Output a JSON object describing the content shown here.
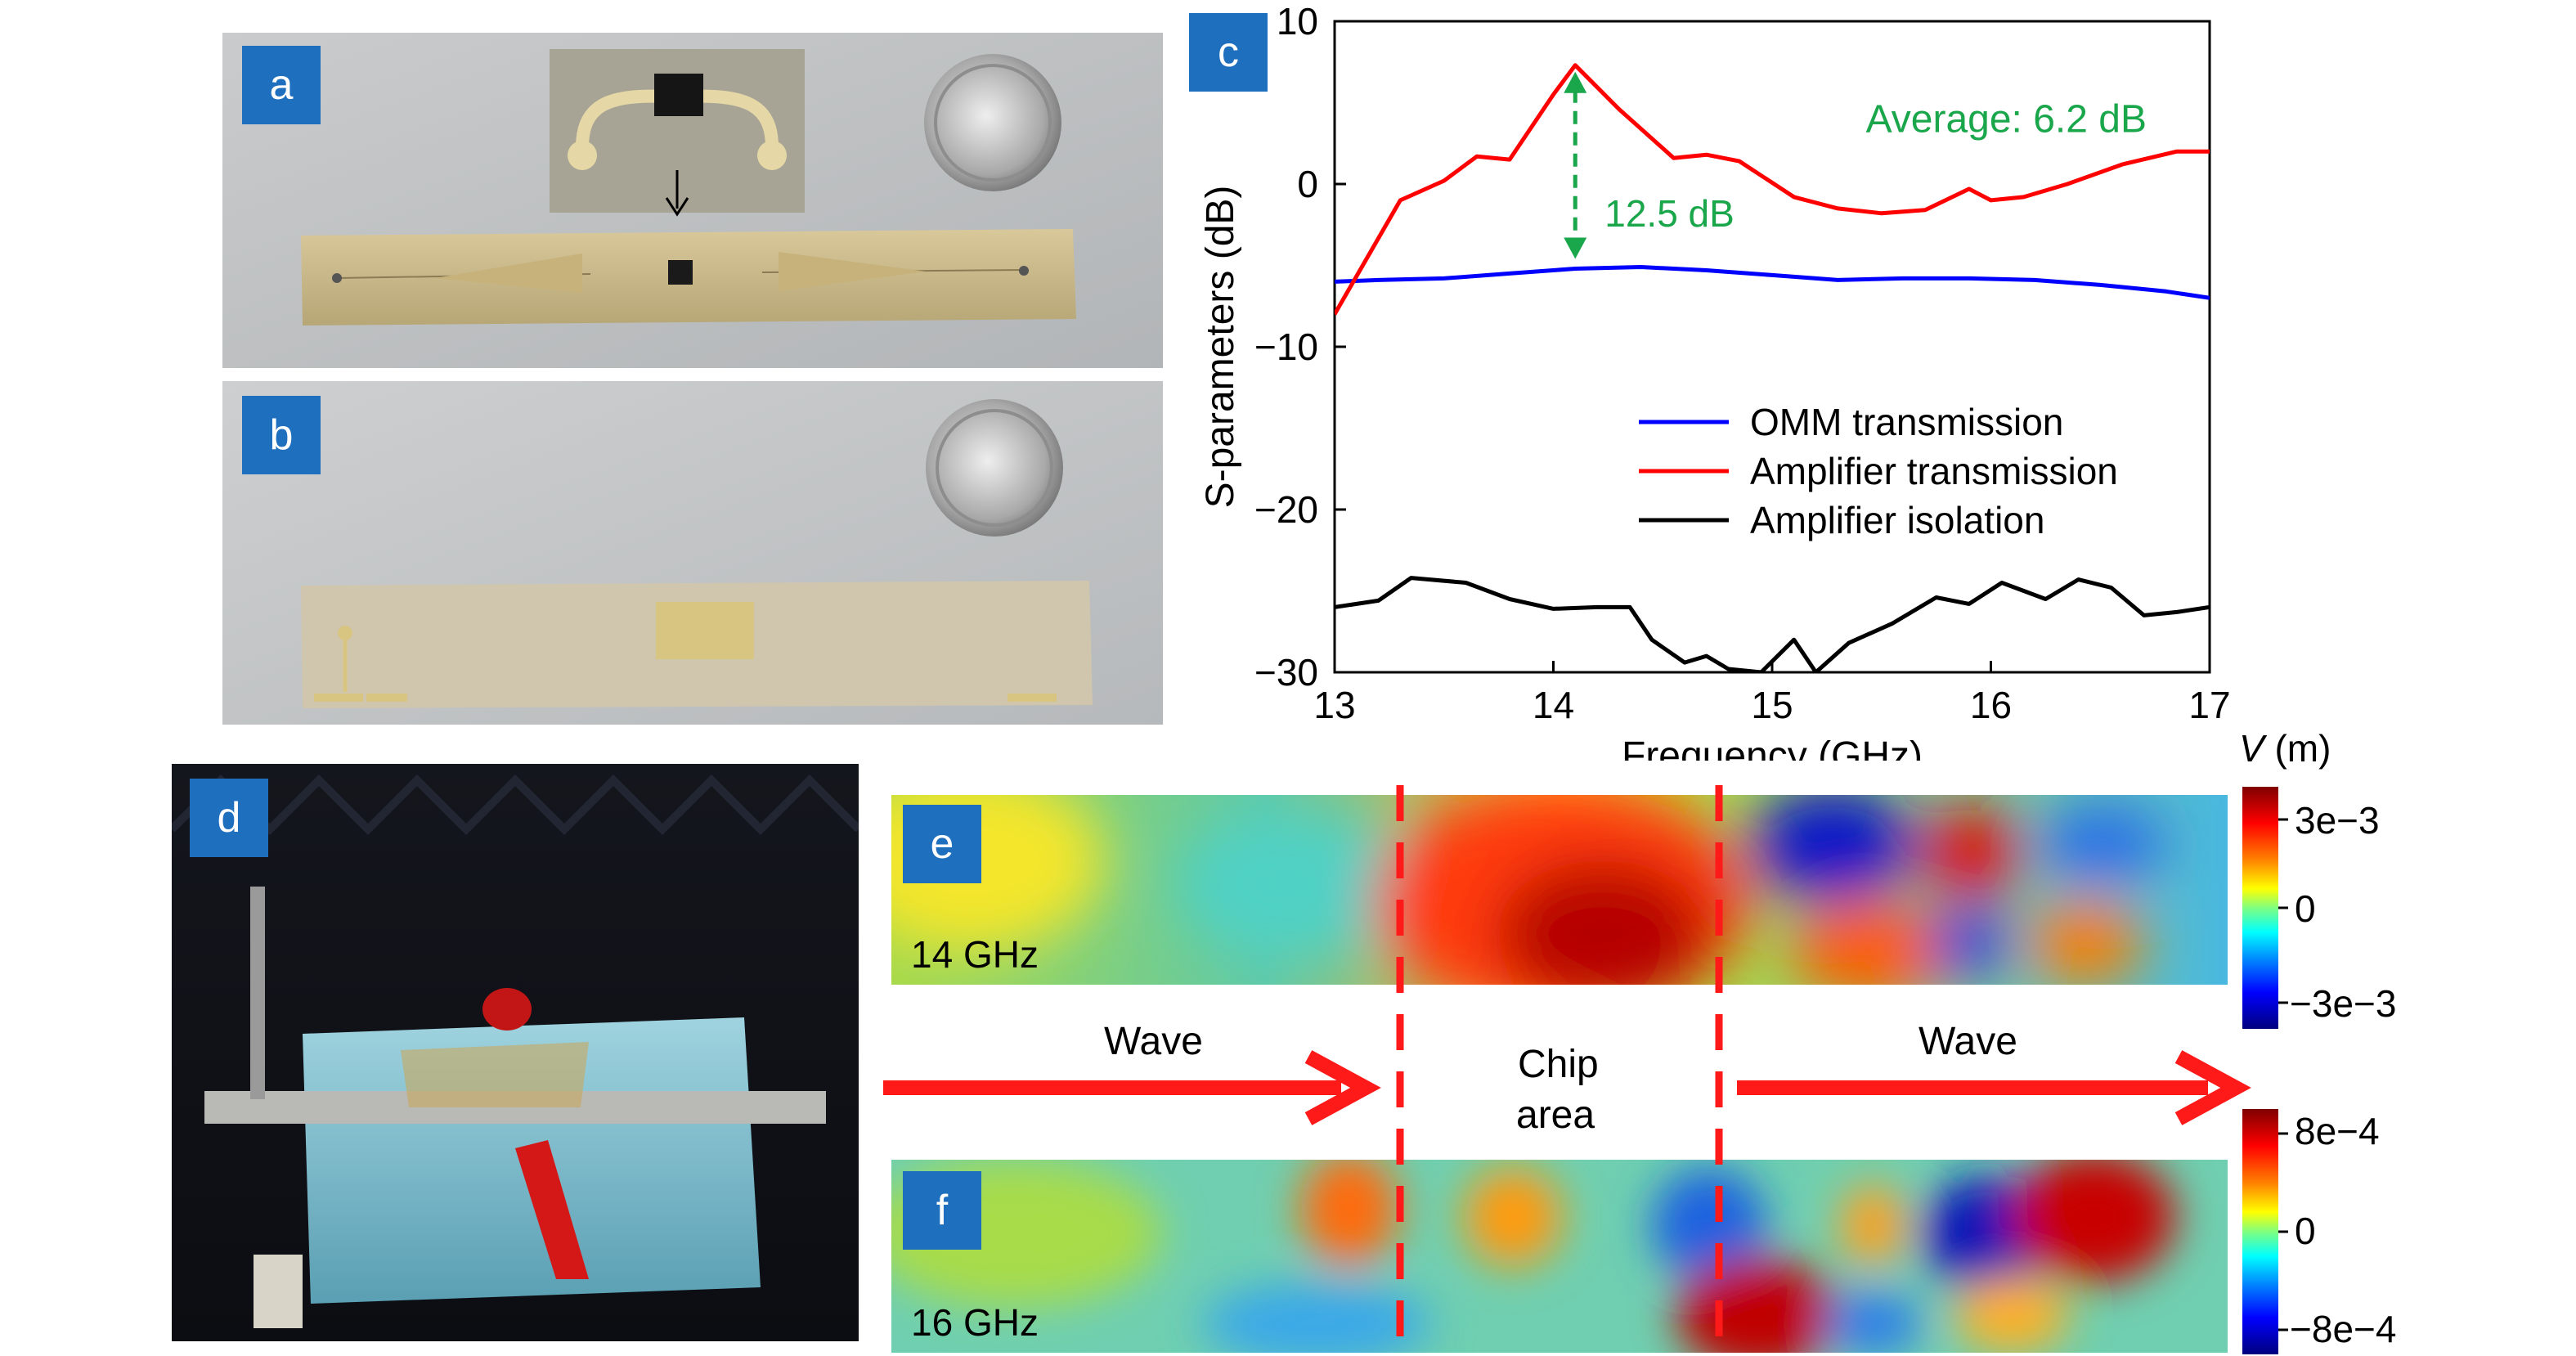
{
  "panels": {
    "a": {
      "label": "a"
    },
    "b": {
      "label": "b"
    },
    "c": {
      "label": "c"
    },
    "d": {
      "label": "d"
    },
    "e": {
      "label": "e",
      "freq": "14 GHz"
    },
    "f": {
      "label": "f",
      "freq": "16 GHz"
    }
  },
  "field_maps": {
    "colorbar_title_italic": "V",
    "colorbar_title_unit": " (m)",
    "colorbar_e_ticks": [
      "3e−3",
      "0",
      "−3e−3"
    ],
    "colorbar_f_ticks": [
      "8e−4",
      "0",
      "−8e−4"
    ],
    "wave_left": "Wave",
    "wave_right": "Wave",
    "chip_area_line1": "Chip",
    "chip_area_line2": "area"
  },
  "colors": {
    "panel_tag": "#1f6fbf",
    "omm": "#0000ff",
    "amplifier": "#ff0000",
    "isolation": "#000000",
    "annotation": "#1aa64b",
    "arrow": "#ff0000"
  },
  "chart_data": {
    "type": "line",
    "xlabel": "Frequency (GHz)",
    "ylabel": "S-parameters (dB)",
    "xlim": [
      13,
      17
    ],
    "ylim": [
      -30,
      10
    ],
    "xticks": [
      "13",
      "14",
      "15",
      "16",
      "17"
    ],
    "yticks": [
      "10",
      "0",
      "−10",
      "−20",
      "−30"
    ],
    "grid": false,
    "legend_position": "lower-right",
    "annotations": {
      "average": "Average: 6.2 dB",
      "difference": "12.5 dB"
    },
    "series": [
      {
        "name": "OMM transmission",
        "color": "#0000ff",
        "x": [
          13.0,
          13.2,
          13.5,
          13.8,
          14.1,
          14.4,
          14.7,
          15.0,
          15.3,
          15.6,
          15.9,
          16.2,
          16.5,
          16.8,
          17.0
        ],
        "y": [
          -6.0,
          -5.9,
          -5.8,
          -5.5,
          -5.2,
          -5.1,
          -5.3,
          -5.6,
          -5.9,
          -5.8,
          -5.8,
          -5.9,
          -6.2,
          -6.6,
          -7.0
        ]
      },
      {
        "name": "Amplifier transmission",
        "color": "#ff0000",
        "x": [
          13.0,
          13.15,
          13.3,
          13.5,
          13.65,
          13.8,
          14.0,
          14.1,
          14.3,
          14.55,
          14.7,
          14.85,
          15.1,
          15.3,
          15.5,
          15.7,
          15.9,
          16.0,
          16.15,
          16.35,
          16.6,
          16.85,
          17.0
        ],
        "y": [
          -8.0,
          -4.5,
          -1.0,
          0.2,
          1.7,
          1.5,
          5.5,
          7.3,
          4.6,
          1.6,
          1.8,
          1.4,
          -0.8,
          -1.5,
          -1.8,
          -1.6,
          -0.3,
          -1.0,
          -0.8,
          0.0,
          1.2,
          2.0,
          2.0
        ]
      },
      {
        "name": "Amplifier isolation",
        "color": "#000000",
        "x": [
          13.0,
          13.2,
          13.35,
          13.6,
          13.8,
          14.0,
          14.2,
          14.35,
          14.45,
          14.6,
          14.7,
          14.8,
          14.95,
          15.1,
          15.2,
          15.35,
          15.55,
          15.75,
          15.9,
          16.05,
          16.25,
          16.4,
          16.55,
          16.7,
          16.85,
          17.0
        ],
        "y": [
          -26.0,
          -25.6,
          -24.2,
          -24.5,
          -25.5,
          -26.1,
          -26.0,
          -26.0,
          -28.0,
          -29.4,
          -29.0,
          -29.8,
          -30.0,
          -28.0,
          -30.0,
          -28.2,
          -27.0,
          -25.4,
          -25.8,
          -24.5,
          -25.5,
          -24.3,
          -24.8,
          -26.5,
          -26.3,
          -26.0
        ]
      }
    ]
  }
}
